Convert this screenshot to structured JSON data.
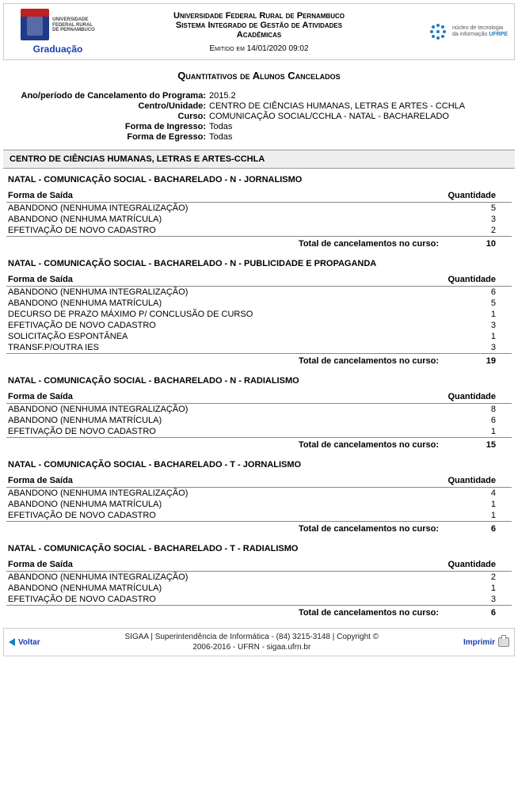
{
  "header": {
    "left_inst_lines": [
      "Universidade",
      "Federal Rural",
      "de Pernambuco"
    ],
    "grad": "Graduação",
    "center_lines": [
      "Universidade Federal Rural de Pernambuco",
      "Sistema Integrado de Gestão de Atividades",
      "Acadêmicas"
    ],
    "emitted": "Emitido em 14/01/2020 09:02",
    "right_line1": "núcleo de tecnologia",
    "right_line2_a": "da informação ",
    "right_line2_b": "UFRPE"
  },
  "title": "Quantitativos de Alunos Cancelados",
  "filters": [
    {
      "label": "Ano/período de Cancelamento do Programa:",
      "value": "2015.2"
    },
    {
      "label": "Centro/Unidade:",
      "value": "CENTRO DE CIÊNCIAS HUMANAS, LETRAS E ARTES - CCHLA"
    },
    {
      "label": "Curso:",
      "value": "COMUNICAÇÃO SOCIAL/CCHLA - NATAL - BACHARELADO"
    },
    {
      "label": "Forma de Ingresso:",
      "value": "Todas"
    },
    {
      "label": "Forma de Egresso:",
      "value": "Todas"
    }
  ],
  "center_name": "CENTRO DE CIÊNCIAS HUMANAS, LETRAS E ARTES-CCHLA",
  "table_headers": {
    "forma": "Forma de Saída",
    "qtd": "Quantidade"
  },
  "total_label": "Total de cancelamentos no curso:",
  "courses": [
    {
      "name": "NATAL - COMUNICAÇÃO SOCIAL - BACHARELADO - N - JORNALISMO",
      "rows": [
        {
          "forma": "ABANDONO (NENHUMA INTEGRALIZAÇÃO)",
          "qtd": "5"
        },
        {
          "forma": "ABANDONO (NENHUMA MATRÍCULA)",
          "qtd": "3"
        },
        {
          "forma": "EFETIVAÇÃO DE NOVO CADASTRO",
          "qtd": "2"
        }
      ],
      "total": "10"
    },
    {
      "name": "NATAL - COMUNICAÇÃO SOCIAL - BACHARELADO - N - PUBLICIDADE E PROPAGANDA",
      "rows": [
        {
          "forma": "ABANDONO (NENHUMA INTEGRALIZAÇÃO)",
          "qtd": "6"
        },
        {
          "forma": "ABANDONO (NENHUMA MATRÍCULA)",
          "qtd": "5"
        },
        {
          "forma": "DECURSO DE PRAZO MÁXIMO P/ CONCLUSÃO DE CURSO",
          "qtd": "1"
        },
        {
          "forma": "EFETIVAÇÃO DE NOVO CADASTRO",
          "qtd": "3"
        },
        {
          "forma": "SOLICITAÇÃO ESPONTÂNEA",
          "qtd": "1"
        },
        {
          "forma": "TRANSF.P/OUTRA IES",
          "qtd": "3"
        }
      ],
      "total": "19"
    },
    {
      "name": "NATAL - COMUNICAÇÃO SOCIAL - BACHARELADO - N - RADIALISMO",
      "rows": [
        {
          "forma": "ABANDONO (NENHUMA INTEGRALIZAÇÃO)",
          "qtd": "8"
        },
        {
          "forma": "ABANDONO (NENHUMA MATRÍCULA)",
          "qtd": "6"
        },
        {
          "forma": "EFETIVAÇÃO DE NOVO CADASTRO",
          "qtd": "1"
        }
      ],
      "total": "15"
    },
    {
      "name": "NATAL - COMUNICAÇÃO SOCIAL - BACHARELADO - T - JORNALISMO",
      "rows": [
        {
          "forma": "ABANDONO (NENHUMA INTEGRALIZAÇÃO)",
          "qtd": "4"
        },
        {
          "forma": "ABANDONO (NENHUMA MATRÍCULA)",
          "qtd": "1"
        },
        {
          "forma": "EFETIVAÇÃO DE NOVO CADASTRO",
          "qtd": "1"
        }
      ],
      "total": "6"
    },
    {
      "name": "NATAL - COMUNICAÇÃO SOCIAL - BACHARELADO - T - RADIALISMO",
      "rows": [
        {
          "forma": "ABANDONO (NENHUMA INTEGRALIZAÇÃO)",
          "qtd": "2"
        },
        {
          "forma": "ABANDONO (NENHUMA MATRÍCULA)",
          "qtd": "1"
        },
        {
          "forma": "EFETIVAÇÃO DE NOVO CADASTRO",
          "qtd": "3"
        }
      ],
      "total": "6"
    }
  ],
  "footer": {
    "back": "Voltar",
    "center_line1": "SIGAA | Superintendência de Informática - (84) 3215-3148 | Copyright ©",
    "center_line2": "2006-2016 - UFRN - sigaa.ufrn.br",
    "print": "Imprimir"
  }
}
